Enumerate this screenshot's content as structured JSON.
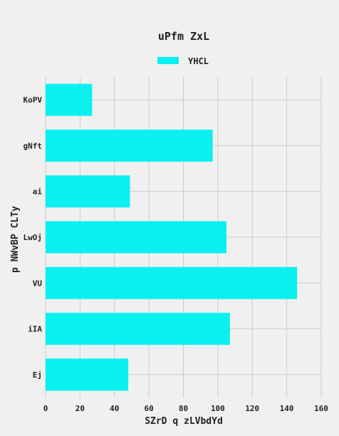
{
  "chart_data": {
    "type": "bar",
    "orientation": "horizontal",
    "title": "uPfm ZxL",
    "xlabel": "SZrD q zLVbdYd",
    "ylabel": "p NWvBP CLTy",
    "categories": [
      "KoPV",
      "gNft",
      "ai",
      "LwOj",
      "VU",
      "iIA",
      "Ej"
    ],
    "series": [
      {
        "name": "YHCL",
        "values": [
          27,
          97,
          49,
          105,
          146,
          107,
          48
        ]
      }
    ],
    "xlim": [
      0,
      160
    ],
    "xticks": [
      "0",
      "20",
      "40",
      "60",
      "80",
      "100",
      "120",
      "140",
      "160"
    ],
    "grid": true,
    "legend_position": "top-center",
    "colors": {
      "bar": "#0af0f0",
      "background": "#f0f0f0",
      "grid": "#cbcbcb",
      "text": "#222222"
    }
  }
}
